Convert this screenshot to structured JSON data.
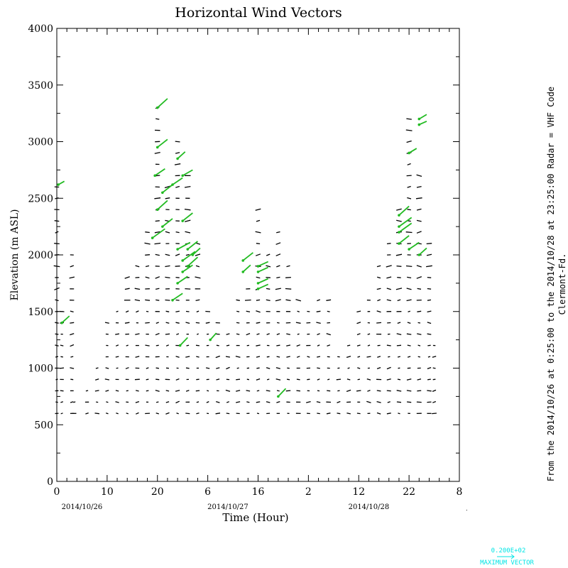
{
  "chart_data": {
    "type": "scatter",
    "title": "Horizontal Wind Vectors",
    "xlabel": "Time (Hour)",
    "ylabel": "Elevation (m ASL)",
    "x_tick_labels": [
      "0",
      "10",
      "20",
      "6",
      "16",
      "2",
      "12",
      "22",
      "8"
    ],
    "x_ticks_hours": [
      0,
      10,
      20,
      30,
      40,
      50,
      60,
      70,
      80
    ],
    "y_ticks": [
      "0",
      "500",
      "1000",
      "1500",
      "2000",
      "2500",
      "3000",
      "3500",
      "4000"
    ],
    "xlim_hours": [
      0,
      80
    ],
    "ylim": [
      0,
      4000
    ],
    "date_labels": [
      {
        "text": "2014/10/26",
        "at_hour": 5
      },
      {
        "text": "2014/10/27",
        "at_hour": 34
      },
      {
        "text": "2014/10/28",
        "at_hour": 62
      }
    ],
    "side_text": "From the 2014/10/26 at  0:25:00 to the 2014/10/28 at 23:25:00 Radar = VHF Code",
    "side_text_2": "Clermont-Fd.",
    "legend_value": "0.200E+02",
    "legend_label": "MAXIMUM VECTOR",
    "columns": [
      {
        "x": 0.0,
        "top": 2620
      },
      {
        "x": 1.0,
        "top": 1540
      },
      {
        "x": 3.0,
        "top": 2050
      },
      {
        "x": 3.5,
        "top": 760
      },
      {
        "x": 6.0,
        "top": 840
      },
      {
        "x": 8.0,
        "top": 1000
      },
      {
        "x": 10.0,
        "top": 1400
      },
      {
        "x": 12.0,
        "top": 1580
      },
      {
        "x": 14.0,
        "top": 1850
      },
      {
        "x": 16.0,
        "top": 1900
      },
      {
        "x": 18.0,
        "top": 2200
      },
      {
        "x": 20.0,
        "top": 3350
      },
      {
        "x": 22.0,
        "top": 2600
      },
      {
        "x": 24.0,
        "top": 3050
      },
      {
        "x": 26.0,
        "top": 2750
      },
      {
        "x": 28.0,
        "top": 2120
      },
      {
        "x": 30.0,
        "top": 1550
      },
      {
        "x": 32.0,
        "top": 1400
      },
      {
        "x": 34.0,
        "top": 1300
      },
      {
        "x": 36.0,
        "top": 1600
      },
      {
        "x": 38.0,
        "top": 1700
      },
      {
        "x": 40.0,
        "top": 2400
      },
      {
        "x": 42.0,
        "top": 2000
      },
      {
        "x": 44.0,
        "top": 2200
      },
      {
        "x": 46.0,
        "top": 1900
      },
      {
        "x": 48.0,
        "top": 1600
      },
      {
        "x": 50.0,
        "top": 1550
      },
      {
        "x": 52.0,
        "top": 1650
      },
      {
        "x": 54.0,
        "top": 1600
      },
      {
        "x": 56.0,
        "top": 1100
      },
      {
        "x": 58.0,
        "top": 1250
      },
      {
        "x": 60.0,
        "top": 1500
      },
      {
        "x": 62.0,
        "top": 1650
      },
      {
        "x": 64.0,
        "top": 1900
      },
      {
        "x": 66.0,
        "top": 2150
      },
      {
        "x": 68.0,
        "top": 2400
      },
      {
        "x": 70.0,
        "top": 3200
      },
      {
        "x": 72.0,
        "top": 2700
      },
      {
        "x": 74.0,
        "top": 2150
      },
      {
        "x": 75.0,
        "top": 1200
      }
    ],
    "bottom_elevation": 600,
    "strong_vectors": [
      {
        "x": 0.3,
        "y": 2620,
        "dx": 1.2,
        "dy": 30
      },
      {
        "x": 1.0,
        "y": 1400,
        "dx": 1.5,
        "dy": 60
      },
      {
        "x": 20.0,
        "y": 3300,
        "dx": 2.0,
        "dy": 80
      },
      {
        "x": 20.0,
        "y": 2950,
        "dx": 2.0,
        "dy": 70
      },
      {
        "x": 19.5,
        "y": 2700,
        "dx": 2.0,
        "dy": 60
      },
      {
        "x": 21.0,
        "y": 2550,
        "dx": 2.0,
        "dy": 70
      },
      {
        "x": 20.0,
        "y": 2400,
        "dx": 2.0,
        "dy": 80
      },
      {
        "x": 21.0,
        "y": 2250,
        "dx": 2.0,
        "dy": 70
      },
      {
        "x": 19.0,
        "y": 2150,
        "dx": 2.5,
        "dy": 80
      },
      {
        "x": 24.0,
        "y": 2850,
        "dx": 1.5,
        "dy": 60
      },
      {
        "x": 25.0,
        "y": 2700,
        "dx": 2.0,
        "dy": 50
      },
      {
        "x": 23.0,
        "y": 2620,
        "dx": 2.0,
        "dy": 60
      },
      {
        "x": 25.0,
        "y": 2300,
        "dx": 2.0,
        "dy": 70
      },
      {
        "x": 24.0,
        "y": 2050,
        "dx": 2.5,
        "dy": 60
      },
      {
        "x": 26.0,
        "y": 2050,
        "dx": 2.0,
        "dy": 70
      },
      {
        "x": 25.0,
        "y": 1950,
        "dx": 2.5,
        "dy": 80
      },
      {
        "x": 26.0,
        "y": 1900,
        "dx": 2.0,
        "dy": 80
      },
      {
        "x": 25.0,
        "y": 1850,
        "dx": 2.0,
        "dy": 60
      },
      {
        "x": 27.0,
        "y": 2000,
        "dx": 1.5,
        "dy": 60
      },
      {
        "x": 24.0,
        "y": 1750,
        "dx": 2.0,
        "dy": 60
      },
      {
        "x": 23.0,
        "y": 1600,
        "dx": 2.0,
        "dy": 60
      },
      {
        "x": 24.5,
        "y": 1200,
        "dx": 1.5,
        "dy": 70
      },
      {
        "x": 30.5,
        "y": 1250,
        "dx": 1.2,
        "dy": 60
      },
      {
        "x": 37.0,
        "y": 1950,
        "dx": 2.0,
        "dy": 70
      },
      {
        "x": 37.0,
        "y": 1850,
        "dx": 1.5,
        "dy": 60
      },
      {
        "x": 40.0,
        "y": 1900,
        "dx": 2.0,
        "dy": 40
      },
      {
        "x": 40.0,
        "y": 1850,
        "dx": 2.0,
        "dy": 40
      },
      {
        "x": 40.0,
        "y": 1750,
        "dx": 2.0,
        "dy": 40
      },
      {
        "x": 40.0,
        "y": 1700,
        "dx": 2.0,
        "dy": 40
      },
      {
        "x": 44.0,
        "y": 750,
        "dx": 1.5,
        "dy": 70
      },
      {
        "x": 68.0,
        "y": 2350,
        "dx": 2.0,
        "dy": 80
      },
      {
        "x": 68.0,
        "y": 2250,
        "dx": 2.5,
        "dy": 80
      },
      {
        "x": 68.0,
        "y": 2200,
        "dx": 2.5,
        "dy": 80
      },
      {
        "x": 68.0,
        "y": 2100,
        "dx": 2.0,
        "dy": 70
      },
      {
        "x": 70.0,
        "y": 2050,
        "dx": 2.0,
        "dy": 60
      },
      {
        "x": 70.0,
        "y": 2900,
        "dx": 1.5,
        "dy": 40
      },
      {
        "x": 72.0,
        "y": 3200,
        "dx": 1.5,
        "dy": 40
      },
      {
        "x": 72.0,
        "y": 3150,
        "dx": 1.5,
        "dy": 30
      },
      {
        "x": 72.0,
        "y": 2000,
        "dx": 1.5,
        "dy": 60
      }
    ]
  },
  "colors": {
    "vector": "#000000",
    "strong_vector": "#22bb22",
    "legend": "#00e5e5"
  }
}
